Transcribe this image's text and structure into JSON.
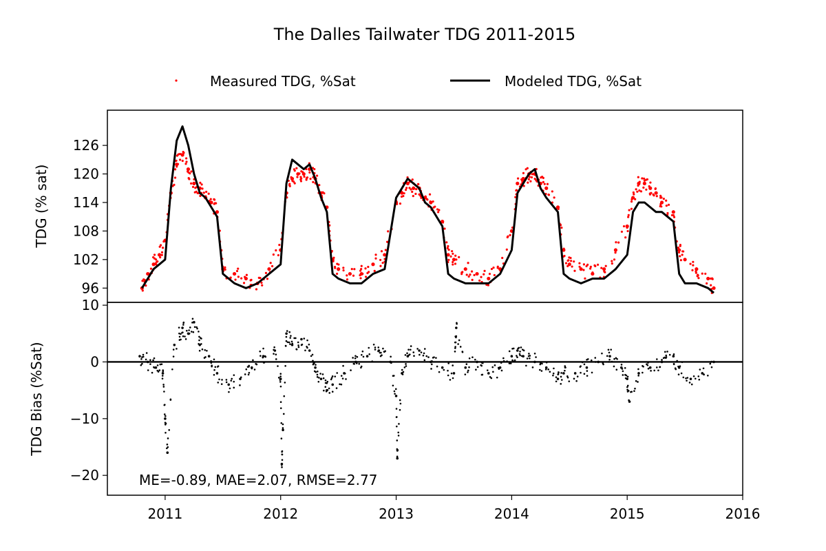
{
  "title": "The Dalles Tailwater TDG 2011-2015",
  "legend": {
    "placement": "top-center",
    "items": [
      {
        "label": "Measured TDG, %Sat",
        "marker": "dot",
        "color": "#ff0000"
      },
      {
        "label": "Modeled TDG, %Sat",
        "marker": "line",
        "color": "#000000"
      }
    ]
  },
  "stats_annotation": "ME=-0.89, MAE=2.07, RMSE=2.77",
  "chart_data": [
    {
      "type": "line",
      "panel": "top",
      "ylabel": "TDG (% sat)",
      "xlim": [
        2010.5,
        2016.0
      ],
      "ylim": [
        93.0,
        133.4
      ],
      "yticks": [
        96,
        102,
        108,
        114,
        120,
        126
      ],
      "grid": false,
      "series": [
        {
          "name": "Measured TDG, %Sat",
          "style": "scatter",
          "color": "#ff0000",
          "x": [
            2010.8,
            2010.85,
            2010.9,
            2010.95,
            2011.0,
            2011.05,
            2011.1,
            2011.15,
            2011.2,
            2011.25,
            2011.3,
            2011.35,
            2011.4,
            2011.45,
            2011.5,
            2011.6,
            2011.7,
            2011.8,
            2011.9,
            2012.0,
            2012.05,
            2012.1,
            2012.15,
            2012.2,
            2012.25,
            2012.3,
            2012.35,
            2012.4,
            2012.45,
            2012.5,
            2012.6,
            2012.7,
            2012.8,
            2012.9,
            2013.0,
            2013.05,
            2013.1,
            2013.15,
            2013.2,
            2013.25,
            2013.3,
            2013.4,
            2013.45,
            2013.5,
            2013.6,
            2013.7,
            2013.8,
            2013.9,
            2014.0,
            2014.05,
            2014.1,
            2014.15,
            2014.2,
            2014.25,
            2014.3,
            2014.4,
            2014.45,
            2014.5,
            2014.6,
            2014.7,
            2014.8,
            2014.9,
            2015.0,
            2015.05,
            2015.1,
            2015.15,
            2015.2,
            2015.25,
            2015.3,
            2015.4,
            2015.45,
            2015.5,
            2015.6,
            2015.7,
            2015.75
          ],
          "y": [
            96,
            99,
            101,
            103,
            106,
            116,
            122,
            124,
            121,
            118,
            117,
            115,
            114,
            112,
            100,
            99,
            98,
            97,
            100,
            104,
            116,
            119,
            120,
            120,
            121,
            119,
            116,
            113,
            102,
            100,
            99,
            99,
            101,
            103,
            114,
            116,
            118,
            117,
            117,
            115,
            114,
            110,
            103,
            102,
            100,
            99,
            98,
            100,
            108,
            118,
            119,
            120,
            120,
            118,
            117,
            113,
            104,
            101,
            100,
            99,
            100,
            104,
            109,
            115,
            118,
            118,
            117,
            116,
            114,
            112,
            104,
            102,
            100,
            98,
            96
          ]
        },
        {
          "name": "Modeled TDG, %Sat",
          "style": "line",
          "color": "#000000",
          "x": [
            2010.8,
            2010.85,
            2010.9,
            2010.95,
            2011.0,
            2011.05,
            2011.1,
            2011.15,
            2011.2,
            2011.25,
            2011.3,
            2011.35,
            2011.4,
            2011.45,
            2011.5,
            2011.6,
            2011.7,
            2011.8,
            2011.9,
            2012.0,
            2012.05,
            2012.1,
            2012.15,
            2012.2,
            2012.25,
            2012.3,
            2012.35,
            2012.4,
            2012.45,
            2012.5,
            2012.6,
            2012.7,
            2012.8,
            2012.9,
            2013.0,
            2013.05,
            2013.1,
            2013.15,
            2013.2,
            2013.25,
            2013.3,
            2013.4,
            2013.45,
            2013.5,
            2013.6,
            2013.7,
            2013.8,
            2013.9,
            2014.0,
            2014.05,
            2014.1,
            2014.15,
            2014.2,
            2014.25,
            2014.3,
            2014.4,
            2014.45,
            2014.5,
            2014.6,
            2014.7,
            2014.8,
            2014.9,
            2015.0,
            2015.05,
            2015.1,
            2015.15,
            2015.2,
            2015.25,
            2015.3,
            2015.4,
            2015.45,
            2015.5,
            2015.6,
            2015.7,
            2015.75
          ],
          "y": [
            96,
            98,
            100,
            101,
            102,
            117,
            127,
            130,
            126,
            120,
            116,
            115,
            113,
            111,
            99,
            97,
            96,
            97,
            99,
            101,
            118,
            123,
            122,
            121,
            122,
            119,
            115,
            112,
            99,
            98,
            97,
            97,
            99,
            100,
            115,
            117,
            119,
            118,
            117,
            114,
            113,
            109,
            99,
            98,
            97,
            97,
            97,
            99,
            104,
            116,
            118,
            120,
            121,
            117,
            115,
            112,
            99,
            98,
            97,
            98,
            98,
            100,
            103,
            112,
            114,
            114,
            113,
            112,
            112,
            110,
            99,
            97,
            97,
            96,
            95
          ]
        }
      ]
    },
    {
      "type": "scatter",
      "panel": "bottom",
      "ylabel": "TDG Bias (%Sat)",
      "xlim": [
        2010.5,
        2016.0
      ],
      "ylim": [
        -23.5,
        10.5
      ],
      "yticks": [
        10,
        0,
        -10,
        -20
      ],
      "xticks": [
        2011,
        2012,
        2013,
        2014,
        2015,
        2016
      ],
      "zero_line": true,
      "grid": false,
      "series": [
        {
          "name": "TDG Bias",
          "color": "#000000",
          "x": [
            2010.78,
            2010.85,
            2010.92,
            2010.98,
            2011.0,
            2011.02,
            2011.08,
            2011.15,
            2011.2,
            2011.25,
            2011.3,
            2011.38,
            2011.45,
            2011.55,
            2011.65,
            2011.75,
            2011.85,
            2011.95,
            2012.0,
            2012.01,
            2012.02,
            2012.05,
            2012.1,
            2012.18,
            2012.25,
            2012.3,
            2012.35,
            2012.4,
            2012.45,
            2012.55,
            2012.65,
            2012.75,
            2012.85,
            2012.95,
            2013.0,
            2013.01,
            2013.05,
            2013.1,
            2013.2,
            2013.3,
            2013.4,
            2013.5,
            2013.52,
            2013.6,
            2013.7,
            2013.8,
            2013.9,
            2014.0,
            2014.05,
            2014.1,
            2014.2,
            2014.3,
            2014.4,
            2014.45,
            2014.55,
            2014.65,
            2014.75,
            2014.85,
            2014.95,
            2015.0,
            2015.02,
            2015.1,
            2015.2,
            2015.3,
            2015.4,
            2015.45,
            2015.55,
            2015.65,
            2015.75
          ],
          "y": [
            1,
            0,
            -1,
            -2,
            -10,
            -16,
            3,
            6,
            5,
            7,
            3,
            1,
            -2,
            -4,
            -3,
            -1,
            1,
            2,
            -3,
            -18,
            -12,
            5,
            3,
            4,
            2,
            -1,
            -3,
            -5,
            -4,
            -2,
            0,
            1,
            2,
            0,
            -6,
            -17,
            -2,
            1,
            2,
            0,
            -1,
            -2,
            6,
            -1,
            0,
            -2,
            -1,
            1,
            2,
            1,
            0,
            -1,
            -3,
            -2,
            -2,
            -1,
            0,
            1,
            -1,
            -3,
            -7,
            -2,
            -1,
            0,
            1,
            -1,
            -3,
            -2,
            0
          ]
        }
      ]
    }
  ]
}
